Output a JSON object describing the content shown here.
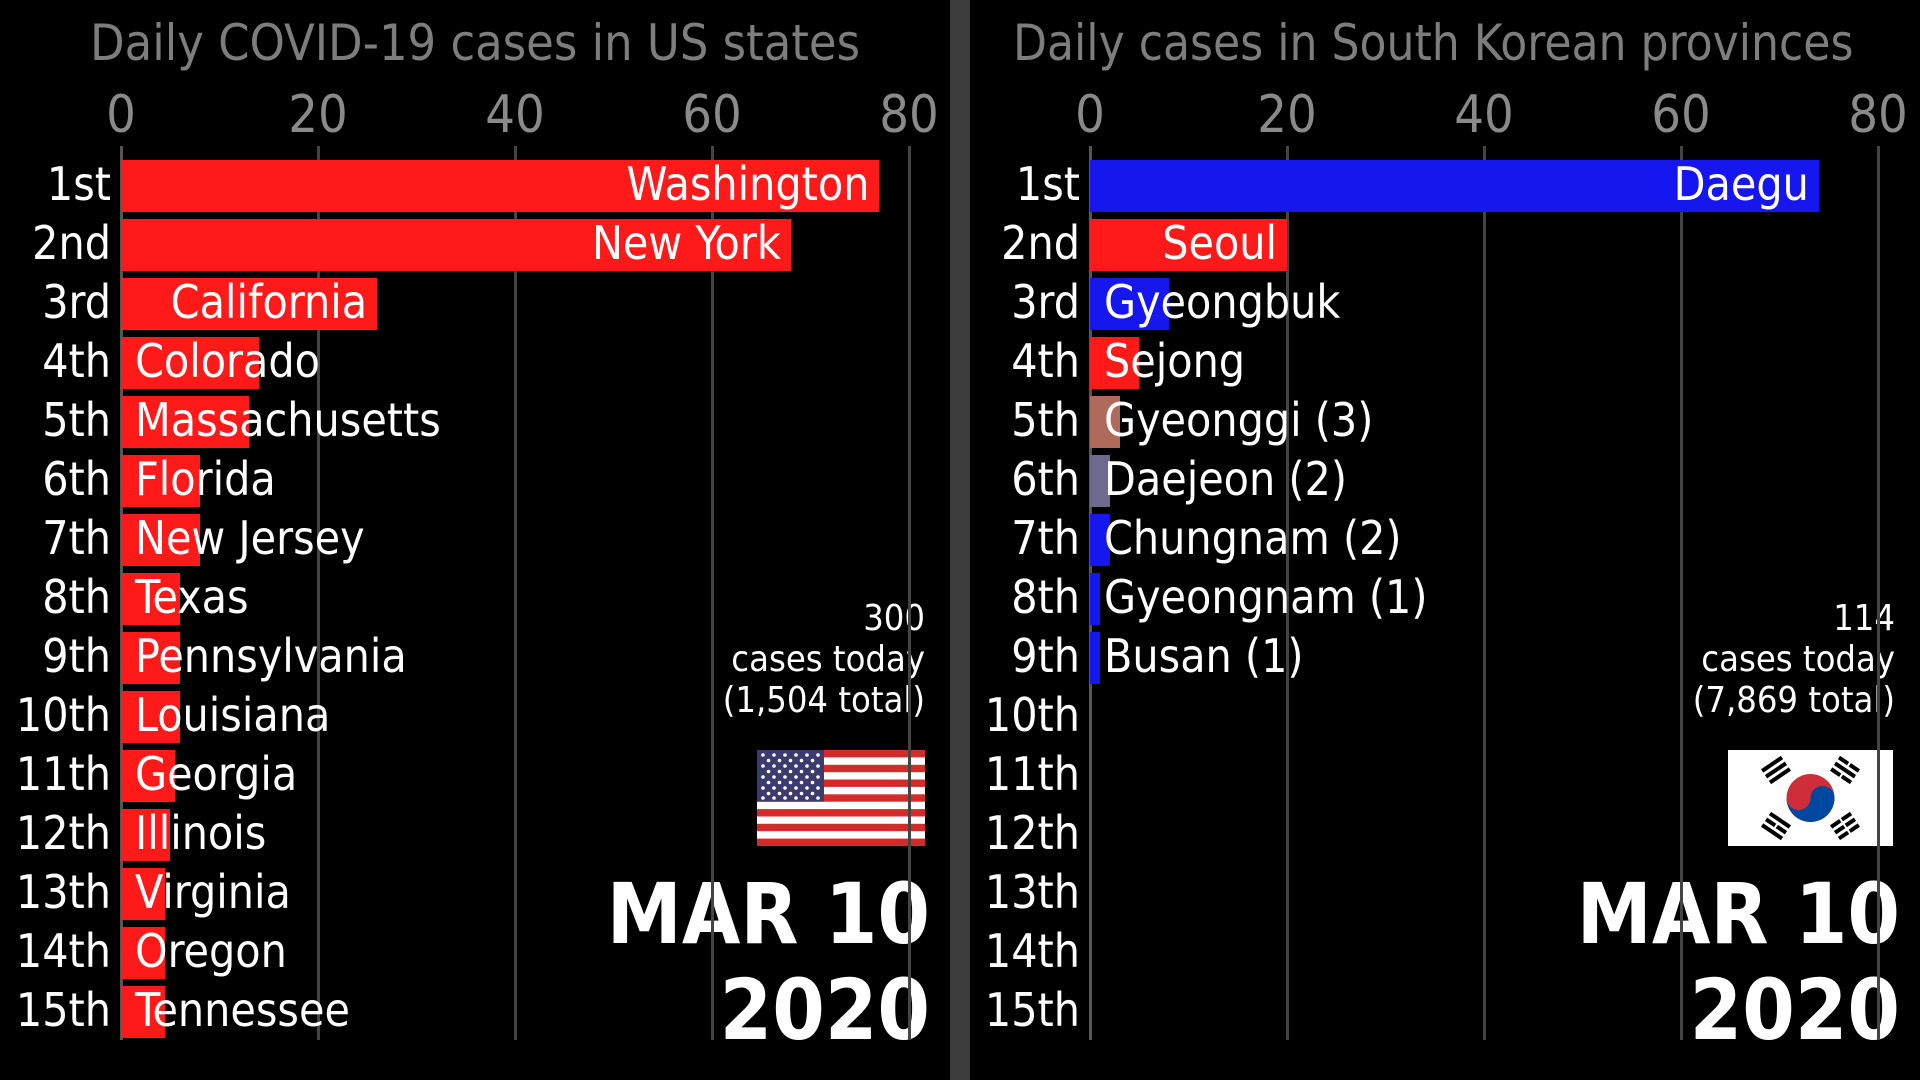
{
  "chart_data": [
    {
      "type": "bar",
      "title": "Daily COVID-19 cases in US states",
      "xlim": [
        0,
        80
      ],
      "xticks": [
        "0",
        "20",
        "40",
        "60",
        "80"
      ],
      "ranks": [
        "1st",
        "2nd",
        "3rd",
        "4th",
        "5th",
        "6th",
        "7th",
        "8th",
        "9th",
        "10th",
        "11th",
        "12th",
        "13th",
        "14th",
        "15th"
      ],
      "categories": [
        "Washington",
        "New York",
        "California",
        "Colorado",
        "Massachusetts",
        "Florida",
        "New Jersey",
        "Texas",
        "Pennsylvania",
        "Louisiana",
        "Georgia",
        "Illinois",
        "Virginia",
        "Oregon",
        "Tennessee"
      ],
      "values": [
        77,
        68,
        26,
        14,
        13,
        8,
        8,
        6,
        6,
        6,
        5.5,
        5,
        4.5,
        4.5,
        4.5
      ],
      "labels_inside": [
        true,
        true,
        true,
        false,
        false,
        false,
        false,
        false,
        false,
        false,
        false,
        false,
        false,
        false,
        false
      ],
      "bar_colors": [
        "#ff1a1a",
        "#ff1a1a",
        "#ff1a1a",
        "#ff1a1a",
        "#ff1a1a",
        "#ff1a1a",
        "#ff1a1a",
        "#ff1a1a",
        "#ff1a1a",
        "#ff1a1a",
        "#ff1a1a",
        "#ff1a1a",
        "#ff1a1a",
        "#ff1a1a",
        "#ff1a1a"
      ],
      "cases_today": "300",
      "cases_today_label": "cases today",
      "total": "(1,504 total)",
      "flag": "us-flag",
      "date_line1": "MAR 10",
      "date_line2": "2020",
      "grid": true
    },
    {
      "type": "bar",
      "title": "Daily cases in South Korean provinces",
      "xlim": [
        0,
        80
      ],
      "xticks": [
        "0",
        "20",
        "40",
        "60",
        "80"
      ],
      "ranks": [
        "1st",
        "2nd",
        "3rd",
        "4th",
        "5th",
        "6th",
        "7th",
        "8th",
        "9th",
        "10th",
        "11th",
        "12th",
        "13th",
        "14th",
        "15th"
      ],
      "categories": [
        "Daegu",
        "Seoul",
        "Gyeongbuk",
        "Sejong",
        "Gyeonggi (3)",
        "Daejeon (2)",
        "Chungnam (2)",
        "Gyeongnam (1)",
        "Busan (1)"
      ],
      "values": [
        74,
        20,
        8,
        5,
        3,
        2,
        2,
        1,
        1
      ],
      "labels_inside": [
        true,
        true,
        false,
        false,
        false,
        false,
        false,
        false,
        false
      ],
      "bar_colors": [
        "#1616ee",
        "#ff1a1a",
        "#1616ee",
        "#ff1a1a",
        "#b06a5a",
        "#6e6a8e",
        "#1616ee",
        "#1616ee",
        "#1616ee"
      ],
      "cases_today": "114",
      "cases_today_label": "cases today",
      "total": "(7,869 total)",
      "flag": "south-korea-flag",
      "date_line1": "MAR 10",
      "date_line2": "2020",
      "grid": true
    }
  ]
}
